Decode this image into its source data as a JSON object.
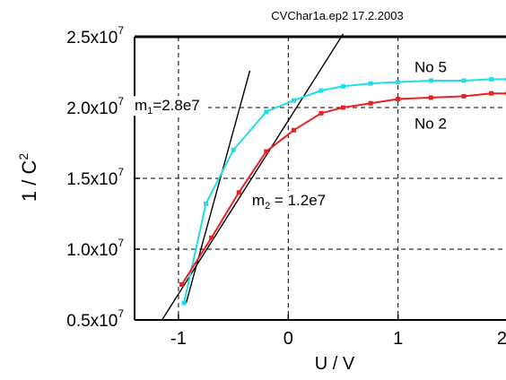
{
  "chart_data": {
    "type": "line",
    "title": "CVChar1a.ep2 17.2.2003",
    "xlabel": "U / V",
    "ylabel_main": "1 / C",
    "ylabel_sup": "2",
    "xlim": [
      -1.4,
      2.0
    ],
    "ylim": [
      0.5,
      2.5
    ],
    "y_scale_exponent": 7,
    "grid": "dashed",
    "xticks": [
      {
        "value": -1,
        "label": "-1"
      },
      {
        "value": 0,
        "label": "0"
      },
      {
        "value": 1,
        "label": "1"
      },
      {
        "value": 2,
        "label": "2"
      }
    ],
    "yticks": [
      {
        "value": 0.5,
        "base": "0.5x10",
        "exp": "7"
      },
      {
        "value": 1.0,
        "base": "1.0x10",
        "exp": "7"
      },
      {
        "value": 1.5,
        "base": "1.5x10",
        "exp": "7"
      },
      {
        "value": 2.0,
        "base": "2.0x10",
        "exp": "7"
      },
      {
        "value": 2.5,
        "base": "2.5x10",
        "exp": "7"
      }
    ],
    "series": [
      {
        "name": "No 5",
        "color": "#22dde8",
        "x": [
          -0.95,
          -0.75,
          -0.5,
          -0.2,
          0.05,
          0.3,
          0.5,
          0.75,
          1.0,
          1.3,
          1.6,
          1.85,
          2.0
        ],
        "y": [
          0.62,
          1.32,
          1.7,
          1.97,
          2.05,
          2.12,
          2.15,
          2.17,
          2.18,
          2.19,
          2.19,
          2.2,
          2.2
        ]
      },
      {
        "name": "No 2",
        "color": "#e82222",
        "x": [
          -0.97,
          -0.7,
          -0.45,
          -0.2,
          0.05,
          0.3,
          0.5,
          0.75,
          1.0,
          1.3,
          1.6,
          1.85,
          2.0
        ],
        "y": [
          0.75,
          1.08,
          1.4,
          1.69,
          1.84,
          1.96,
          2.0,
          2.03,
          2.06,
          2.07,
          2.08,
          2.1,
          2.1
        ]
      }
    ],
    "fit_lines": [
      {
        "label": "m1",
        "x": [
          -0.93,
          -0.35
        ],
        "y": [
          0.62,
          2.26
        ],
        "color": "#000000"
      },
      {
        "label": "m2",
        "x": [
          -1.15,
          0.5
        ],
        "y": [
          0.5,
          2.52
        ],
        "color": "#000000"
      }
    ],
    "annotations": [
      {
        "id": "no5",
        "text": "No 5",
        "x": 1.15,
        "y": 2.25
      },
      {
        "id": "no2",
        "text": "No 2",
        "x": 1.15,
        "y": 1.85
      },
      {
        "id": "m1",
        "main": "m",
        "sub": "1",
        "rest": "=2.8e7",
        "x": -1.4,
        "y": 1.98
      },
      {
        "id": "m2",
        "main": "m",
        "sub": "2",
        "rest": " = 1.2e7",
        "x": -0.33,
        "y": 1.31
      }
    ]
  }
}
